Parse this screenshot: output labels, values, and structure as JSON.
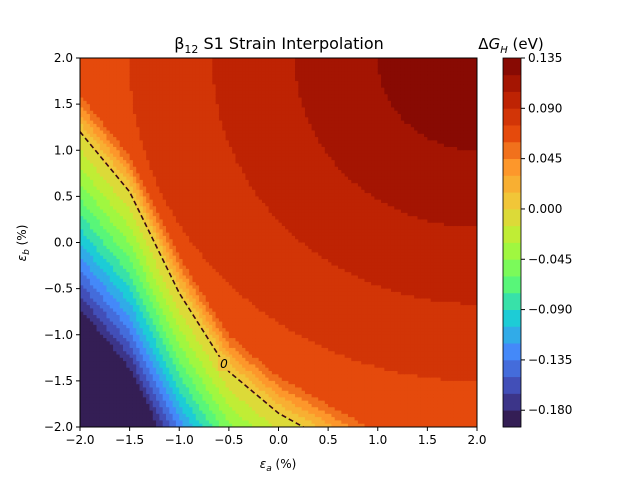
{
  "chart_data": {
    "type": "heatmap",
    "subtype": "filled-contour",
    "title": {
      "symbol": "β",
      "subscript": "12",
      "rest": " S1 Strain Interpolation"
    },
    "xlabel": {
      "symbol": "ε",
      "subscript": "a",
      "rest": " (%)"
    },
    "ylabel": {
      "symbol": "ε",
      "subscript": "b",
      "rest": " (%)"
    },
    "colorbar_label": {
      "prefix": "Δ",
      "symbol": "G",
      "subscript": "H",
      "rest": " (eV)"
    },
    "xlim": [
      -2.0,
      2.0
    ],
    "ylim": [
      -2.0,
      2.0
    ],
    "xticks": [
      "−2.0",
      "−1.5",
      "−1.0",
      "−0.5",
      "0.0",
      "0.5",
      "1.0",
      "1.5",
      "2.0"
    ],
    "yticks": [
      "−2.0",
      "−1.5",
      "−1.0",
      "−0.5",
      "0.0",
      "0.5",
      "1.0",
      "1.5",
      "2.0"
    ],
    "colorbar_range": [
      -0.195,
      0.135
    ],
    "colorbar_ticks": [
      "0.135",
      "0.090",
      "0.045",
      "0.000",
      "−0.045",
      "−0.090",
      "−0.135",
      "−0.180"
    ],
    "colorbar_tick_values": [
      0.135,
      0.09,
      0.045,
      0.0,
      -0.045,
      -0.09,
      -0.135,
      -0.18
    ],
    "level_step": 0.015,
    "zero_contour_label": "0",
    "zero_contour_line": [
      [
        -2.0,
        1.2
      ],
      [
        -1.5,
        0.55
      ],
      [
        -1.0,
        -0.55
      ],
      [
        -0.5,
        -1.4
      ],
      [
        0.0,
        -1.85
      ],
      [
        0.25,
        -2.0
      ]
    ],
    "colormap": "turbo",
    "colormap_stops": [
      "#30123b",
      "#4146ad",
      "#4686fb",
      "#1bcfd4",
      "#62fc6b",
      "#b2f634",
      "#efcd3a",
      "#fe9b2d",
      "#e4460a",
      "#b81d02",
      "#7a0403"
    ]
  }
}
